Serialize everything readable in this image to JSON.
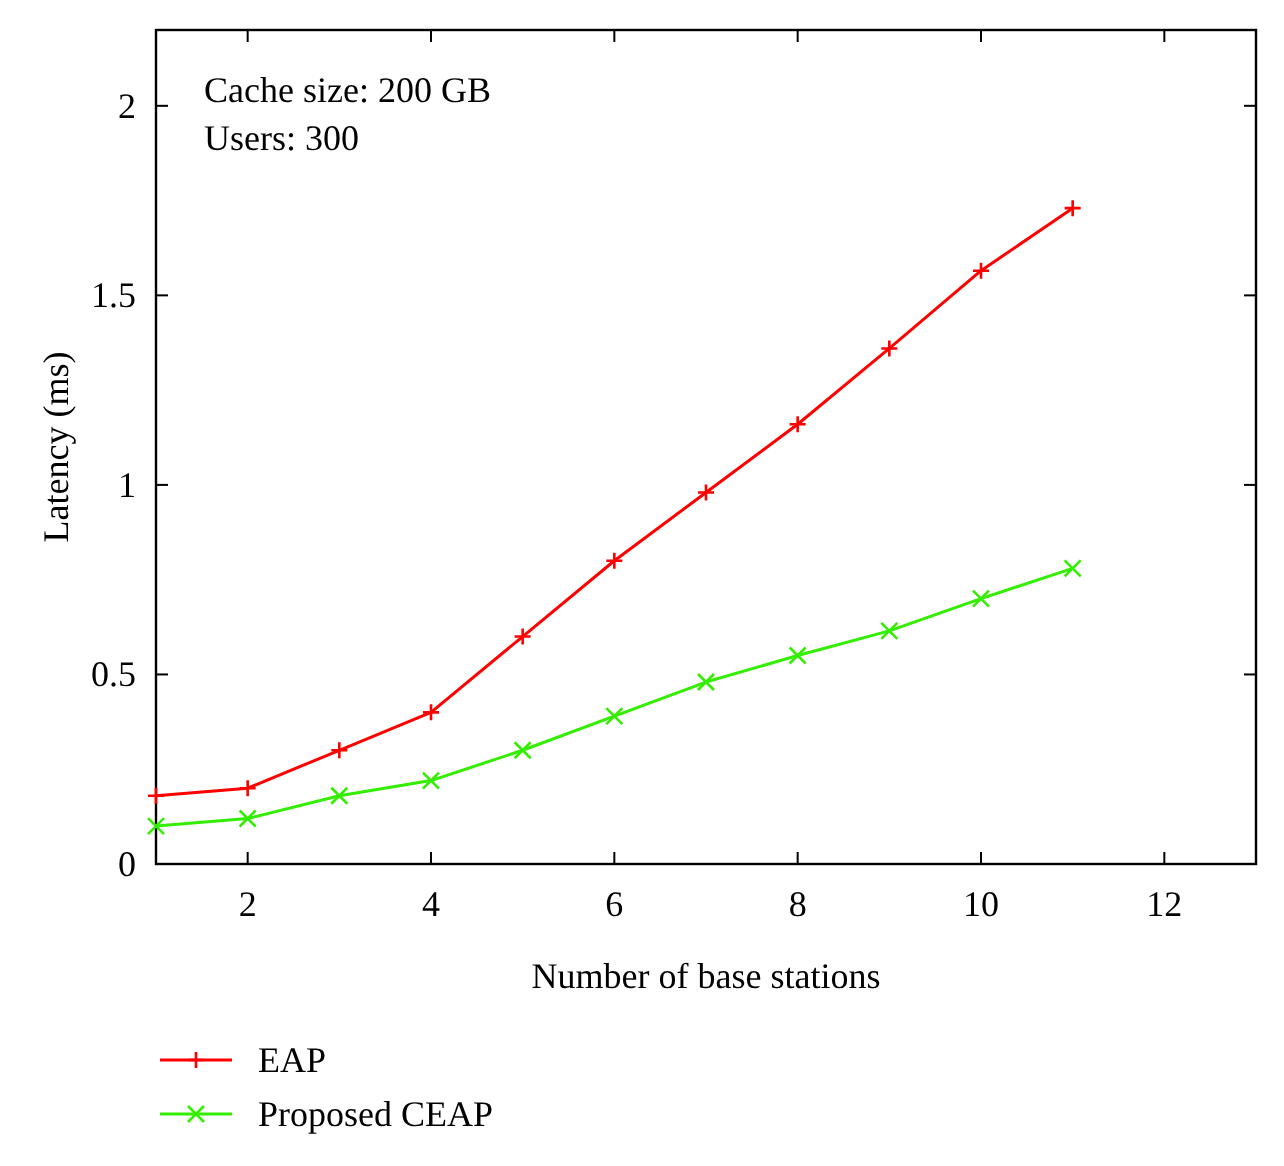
{
  "chart_data": {
    "type": "line",
    "xlabel": "Number of base stations",
    "ylabel": "Latency (ms)",
    "annotations": [
      "Cache size: 200 GB",
      "Users: 300"
    ],
    "x": [
      1,
      2,
      3,
      4,
      5,
      6,
      7,
      8,
      9,
      10,
      11
    ],
    "series": [
      {
        "name": "EAP",
        "color": "#ff0000",
        "values": [
          0.18,
          0.2,
          0.3,
          0.4,
          0.6,
          0.8,
          0.98,
          1.16,
          1.36,
          1.565,
          1.73
        ]
      },
      {
        "name": "Proposed CEAP",
        "color": "#33ee00",
        "values": [
          0.1,
          0.12,
          0.18,
          0.22,
          0.3,
          0.39,
          0.48,
          0.55,
          0.615,
          0.7,
          0.78
        ]
      }
    ],
    "xlim": [
      1,
      13
    ],
    "xticks": [
      2,
      4,
      6,
      8,
      10,
      12
    ],
    "ylim": [
      0,
      2.2
    ],
    "yticks": [
      0,
      0.5,
      1,
      1.5,
      2
    ],
    "marker": "cross",
    "line_style": "solid",
    "grid": false,
    "legend": "bottom"
  }
}
